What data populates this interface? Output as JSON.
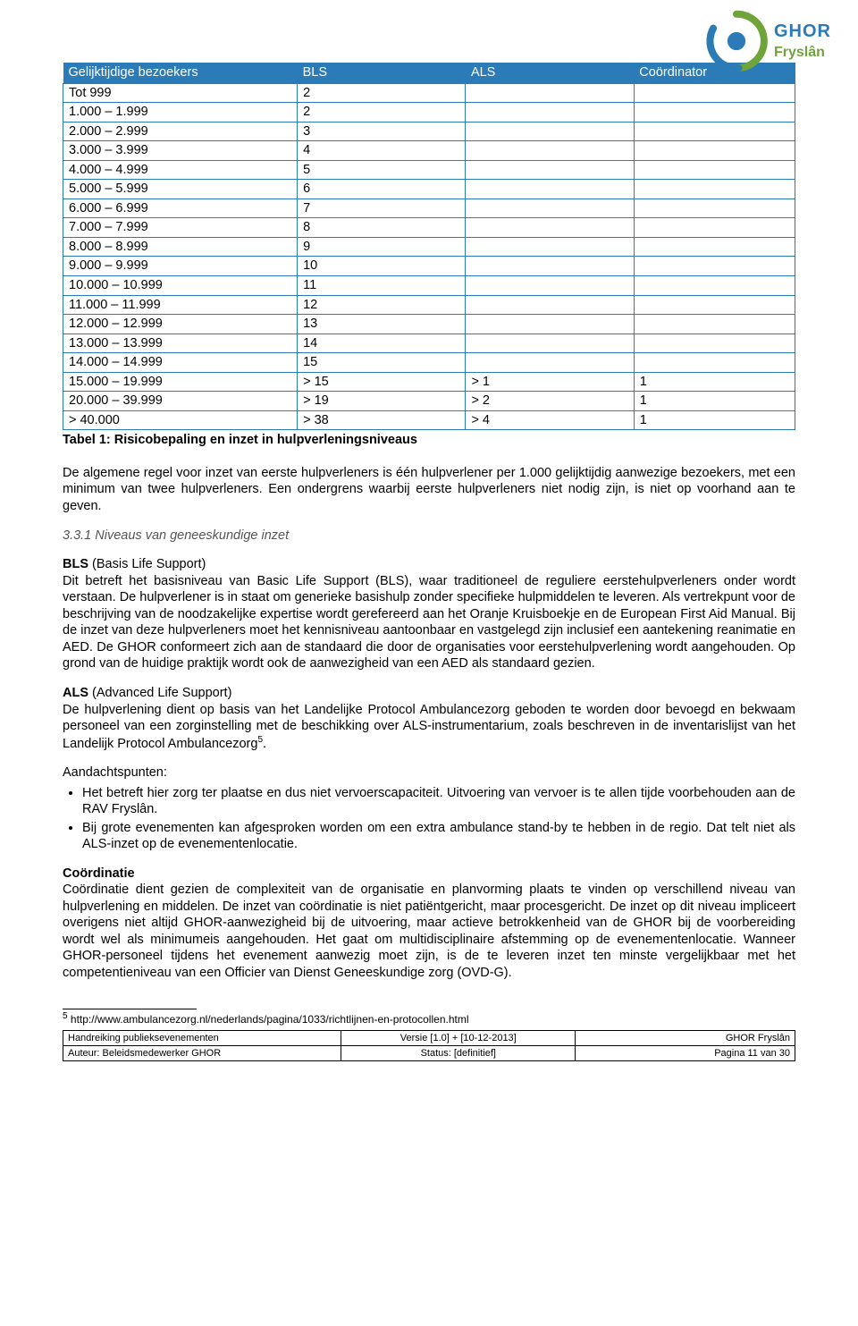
{
  "logo": {
    "line1": "GHOR",
    "line2": "Fryslân"
  },
  "table": {
    "type": "table",
    "columns": [
      "Gelijktijdige bezoekers",
      "BLS",
      "ALS",
      "Coördinator"
    ],
    "header_bg": "#2a7bb8",
    "header_color": "#ffffff",
    "border_color": "#2a7bb8",
    "col_widths": [
      "32%",
      "23%",
      "23%",
      "22%"
    ],
    "rows": [
      [
        "Tot 999",
        "2",
        "",
        ""
      ],
      [
        "1.000 – 1.999",
        "2",
        "",
        ""
      ],
      [
        "2.000 – 2.999",
        "3",
        "",
        ""
      ],
      [
        "3.000 – 3.999",
        "4",
        "",
        ""
      ],
      [
        "4.000 – 4.999",
        "5",
        "",
        ""
      ],
      [
        "5.000 – 5.999",
        "6",
        "",
        ""
      ],
      [
        "6.000 – 6.999",
        "7",
        "",
        ""
      ],
      [
        "7.000 – 7.999",
        "8",
        "",
        ""
      ],
      [
        "8.000 – 8.999",
        "9",
        "",
        ""
      ],
      [
        "9.000 – 9.999",
        "10",
        "",
        ""
      ],
      [
        "10.000 – 10.999",
        "11",
        "",
        ""
      ],
      [
        "11.000 – 11.999",
        "12",
        "",
        ""
      ],
      [
        "12.000 – 12.999",
        "13",
        "",
        ""
      ],
      [
        "13.000 – 13.999",
        "14",
        "",
        ""
      ],
      [
        "14.000 – 14.999",
        "15",
        "",
        ""
      ],
      [
        "15.000 – 19.999",
        "> 15",
        "> 1",
        "1"
      ],
      [
        "20.000 – 39.999",
        "> 19",
        "> 2",
        "1"
      ],
      [
        "> 40.000",
        "> 38",
        "> 4",
        "1"
      ]
    ]
  },
  "caption": "Tabel 1: Risicobepaling en inzet in hulpverleningsniveaus",
  "para_intro": "De algemene regel voor inzet van eerste hulpverleners is één hulpverlener per 1.000 gelijktijdig aanwezige bezoekers, met een minimum van twee hulpverleners. Een ondergrens waarbij eerste hulpverleners niet nodig zijn, is niet op voorhand aan te geven.",
  "section_number": "3.3.1 Niveaus van geneeskundige inzet",
  "bls_title": "BLS",
  "bls_title_after": " (Basis Life Support)",
  "bls_body": "Dit betreft het basisniveau van Basic Life Support (BLS), waar traditioneel de reguliere eerstehulpverleners onder wordt verstaan. De hulpverlener is in staat om generieke basishulp zonder specifieke hulpmiddelen te leveren. Als vertrekpunt voor de beschrijving van de noodzakelijke expertise wordt gerefereerd aan het Oranje Kruisboekje en de European First Aid Manual. Bij de inzet van deze hulpverleners moet het kennisniveau aantoonbaar en vastgelegd zijn inclusief een aantekening reanimatie en AED. De GHOR conformeert zich aan de standaard die door de organisaties voor eerstehulpverlening wordt aangehouden. Op grond van de huidige praktijk wordt ook de aanwezigheid van een AED als standaard gezien.",
  "als_title": "ALS",
  "als_title_after": " (Advanced Life Support)",
  "als_body_pre": "De hulpverlening dient op basis van het Landelijke Protocol Ambulancezorg geboden te worden door bevoegd en bekwaam personeel van een zorginstelling met de beschikking over ALS-instrumentarium, zoals beschreven in de inventarislijst van het Landelijk Protocol Ambulancezorg",
  "als_body_post": ".",
  "attention_title": "Aandachtspunten:",
  "bullets": [
    "Het betreft hier zorg ter plaatse en dus niet vervoerscapaciteit. Uitvoering van vervoer is te allen tijde voorbehouden aan de RAV Fryslân.",
    "Bij grote evenementen kan afgesproken worden om een extra ambulance stand-by te hebben in de regio. Dat telt niet als ALS-inzet op de evenementenlocatie."
  ],
  "coord_title": "Coördinatie",
  "coord_body": "Coördinatie dient gezien de complexiteit van de organisatie en planvorming plaats te vinden op verschillend niveau van hulpverlening en middelen. De inzet van coördinatie is niet patiëntgericht, maar procesgericht. De inzet op dit niveau impliceert overigens niet altijd GHOR-aanwezigheid bij de uitvoering, maar actieve betrokkenheid van de GHOR bij de voorbereiding wordt wel als minimumeis aangehouden. Het gaat om multidisciplinaire afstemming op de evenementenlocatie. Wanneer GHOR-personeel tijdens het evenement aanwezig moet zijn, is de te leveren inzet ten minste vergelijkbaar met het competentieniveau van een Officier van Dienst Geneeskundige zorg (OVD-G).",
  "footnote_num": "5",
  "footnote_text": " http://www.ambulancezorg.nl/nederlands/pagina/1033/richtlijnen-en-protocollen.html",
  "footer": {
    "r1c1": "Handreiking publieksevenementen",
    "r1c2": "Versie [1.0] + [10-12-2013]",
    "r1c3": "GHOR Fryslân",
    "r2c1": "Auteur: Beleidsmedewerker GHOR",
    "r2c2": "Status: [definitief]",
    "r2c3": "Pagina 11 van 30"
  }
}
